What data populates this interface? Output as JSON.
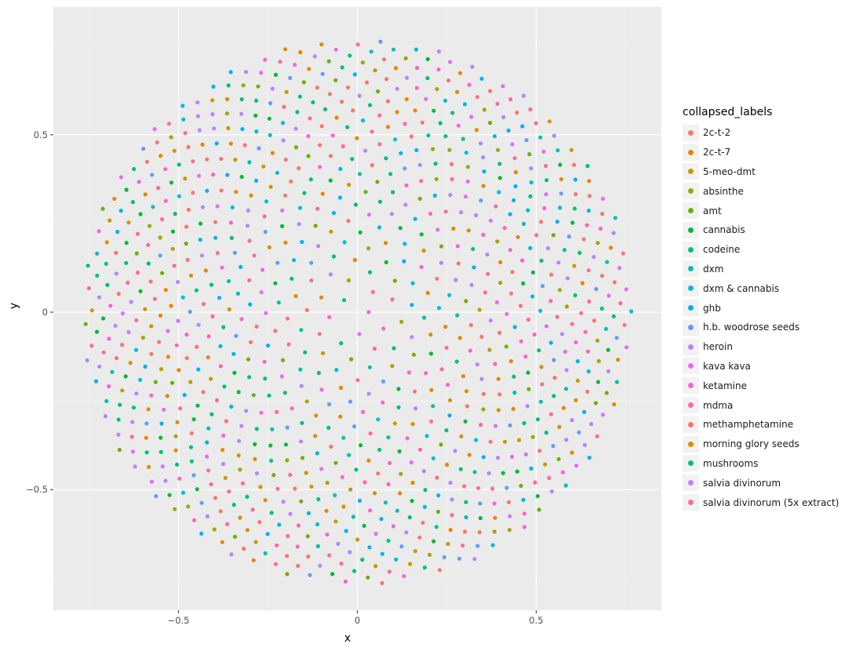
{
  "chart_data": {
    "type": "scatter",
    "title": "",
    "xlabel": "x",
    "ylabel": "y",
    "xlim": [
      -0.85,
      0.85
    ],
    "ylim": [
      -0.84,
      0.86
    ],
    "xticks": [
      {
        "value": -0.5,
        "label": "−0.5"
      },
      {
        "value": 0,
        "label": "0"
      },
      {
        "value": 0.5,
        "label": "0.5"
      }
    ],
    "yticks": [
      {
        "value": -0.5,
        "label": "−0.5"
      },
      {
        "value": 0,
        "label": "0"
      },
      {
        "value": 0.5,
        "label": "0.5"
      }
    ],
    "grid": true,
    "background": "#ebebeb",
    "legend_position": "right",
    "legend_title": "collapsed_labels",
    "point_layout": "points fill a disc of radius about 0.77 centred at (0, 0), denser toward the rim",
    "approx_point_count": 1000,
    "series": [
      {
        "name": "2c-t-2",
        "color": "#F8766D"
      },
      {
        "name": "2c-t-7",
        "color": "#E58700"
      },
      {
        "name": "5-meo-dmt",
        "color": "#C99800"
      },
      {
        "name": "absinthe",
        "color": "#A3A500"
      },
      {
        "name": "amt",
        "color": "#6BB100"
      },
      {
        "name": "cannabis",
        "color": "#00BA38"
      },
      {
        "name": "codeine",
        "color": "#00BF7D"
      },
      {
        "name": "dxm",
        "color": "#00C0AF"
      },
      {
        "name": "dxm & cannabis",
        "color": "#00BCD8"
      },
      {
        "name": "ghb",
        "color": "#00B0F6"
      },
      {
        "name": "h.b. woodrose seeds",
        "color": "#619CFF"
      },
      {
        "name": "heroin",
        "color": "#B983FF"
      },
      {
        "name": "kava kava",
        "color": "#E76BF3"
      },
      {
        "name": "ketamine",
        "color": "#FD61D1"
      },
      {
        "name": "mdma",
        "color": "#FF67A4"
      },
      {
        "name": "methamphetamine",
        "color": "#F8766D"
      },
      {
        "name": "morning glory seeds",
        "color": "#E58700"
      },
      {
        "name": "mushrooms",
        "color": "#00BF7D"
      },
      {
        "name": "salvia divinorum",
        "color": "#B983FF"
      },
      {
        "name": "salvia divinorum (5x extract)",
        "color": "#FF67A4"
      }
    ]
  }
}
